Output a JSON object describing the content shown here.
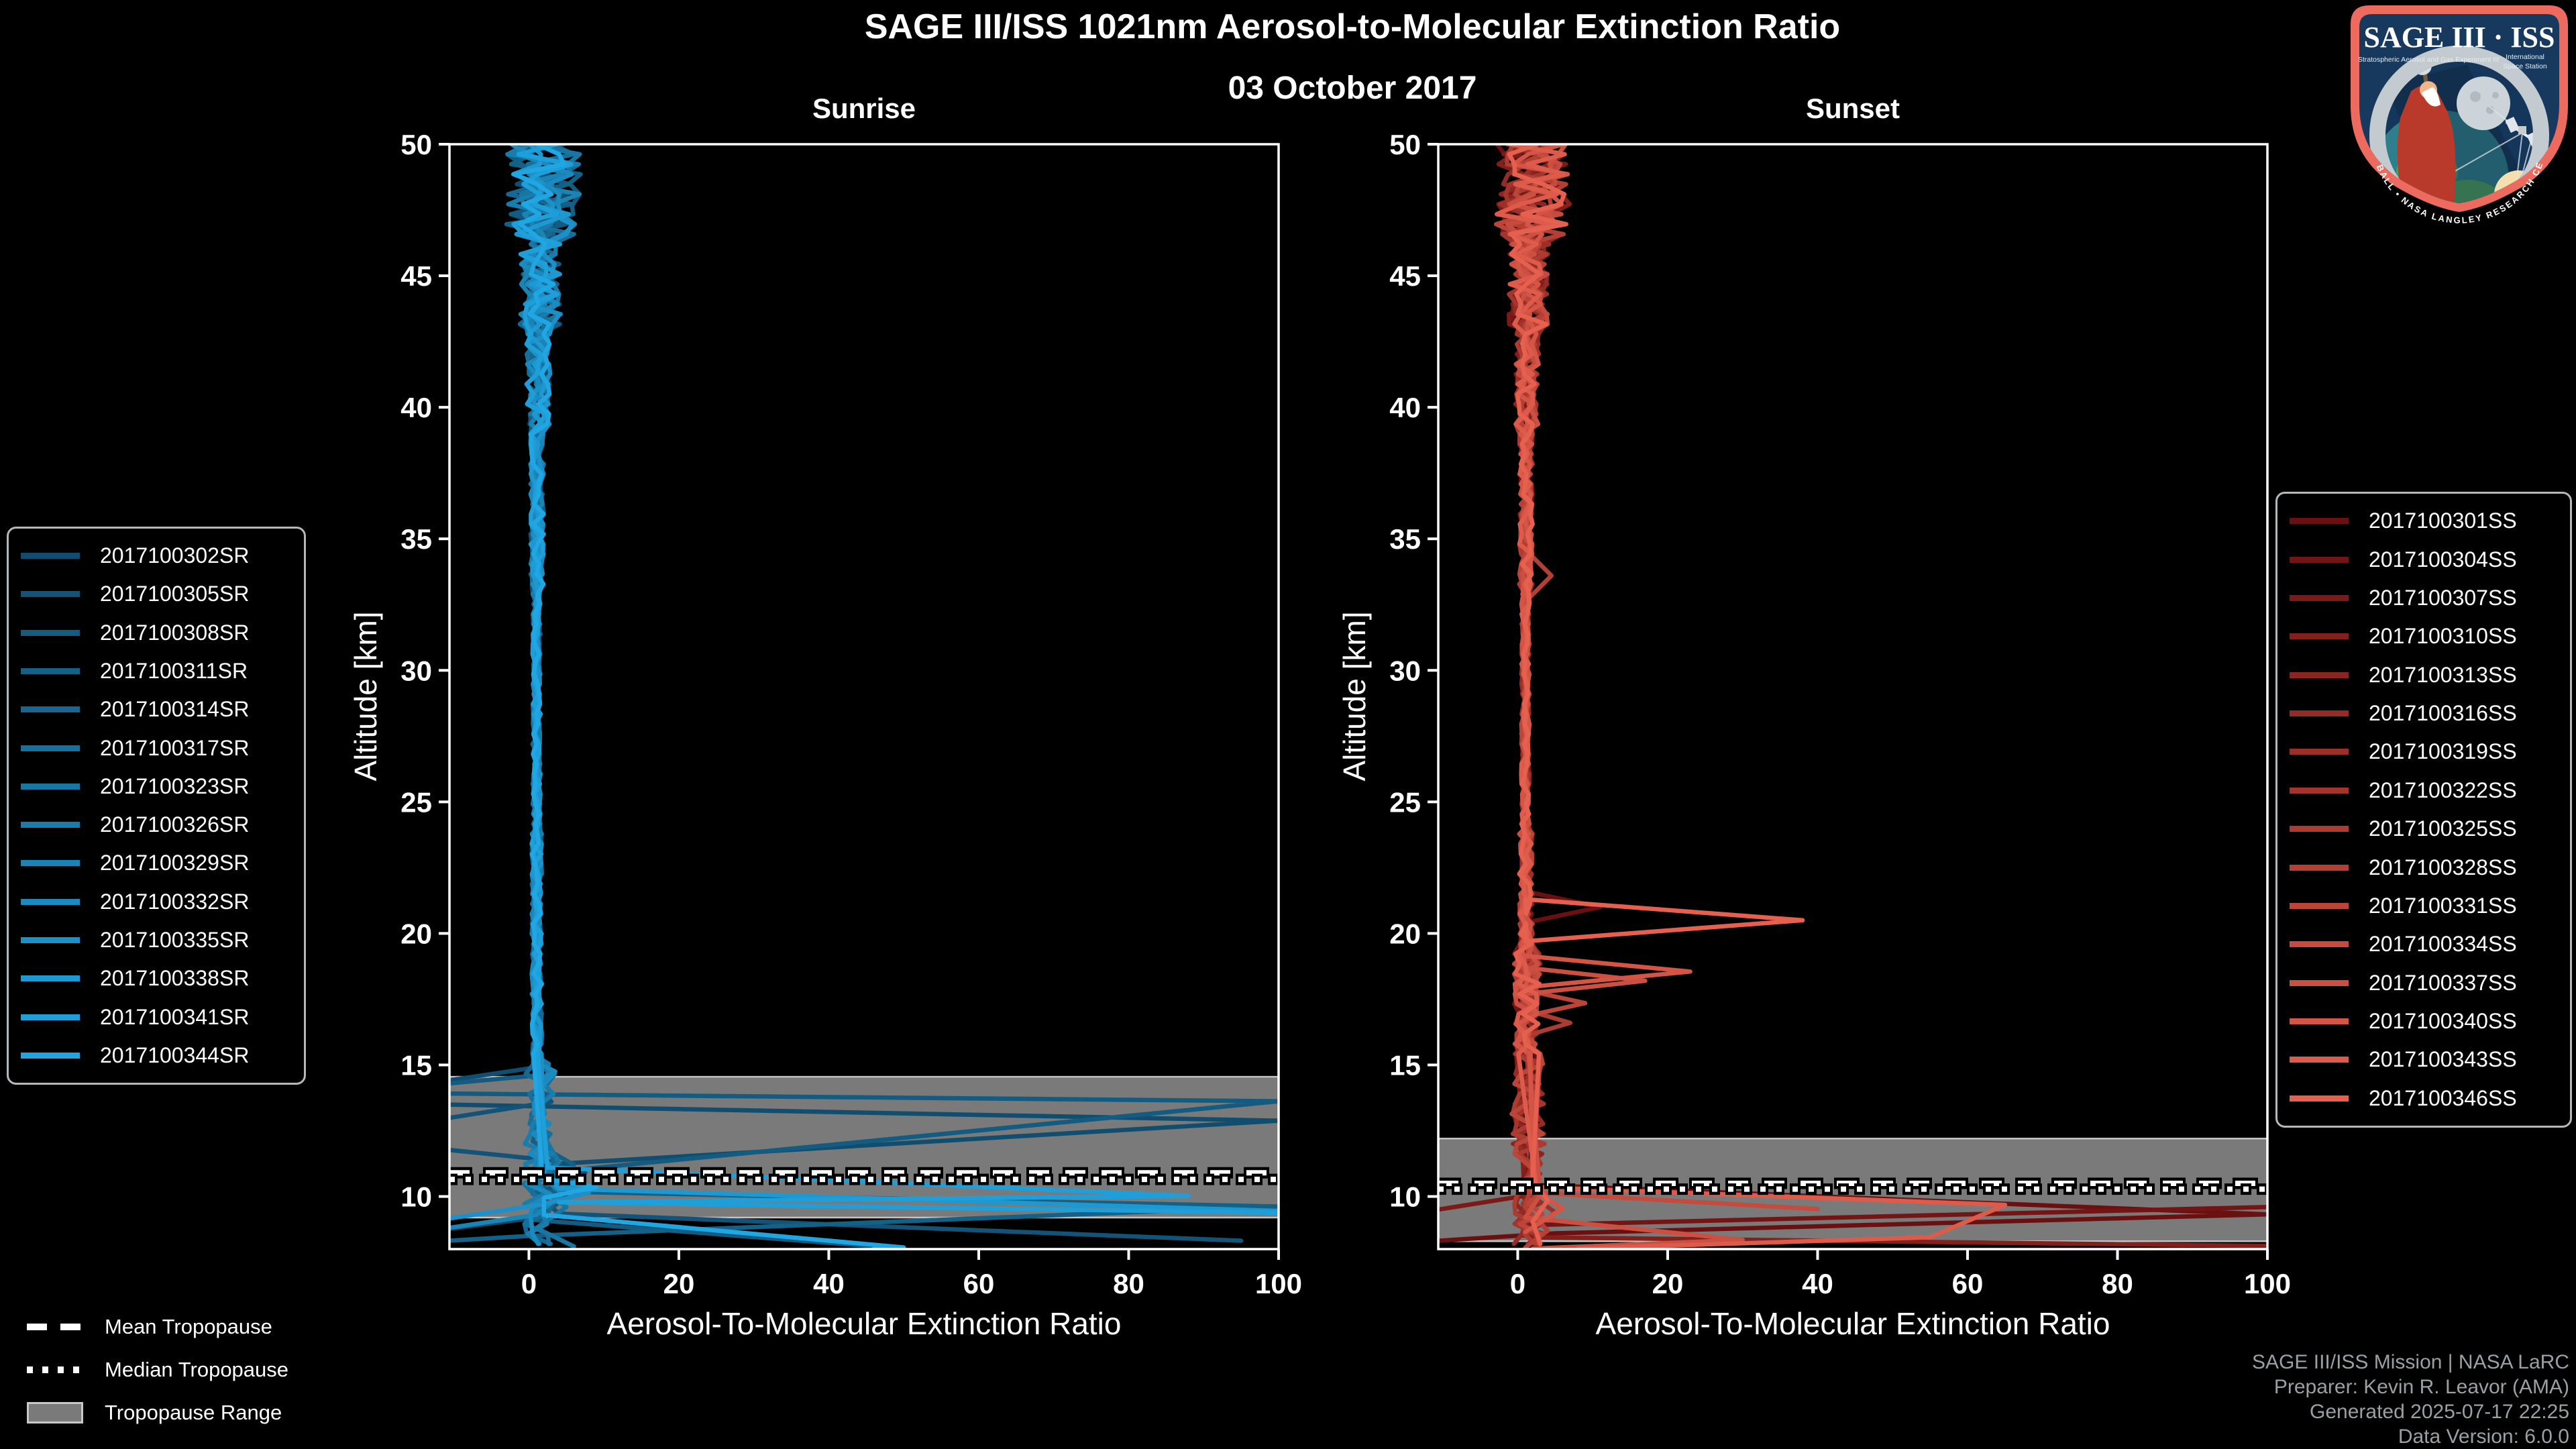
{
  "header": {
    "title": "SAGE III/ISS 1021nm Aerosol-to-Molecular Extinction Ratio",
    "date": "03 October 2017"
  },
  "logo": {
    "title": "SAGE III · ISS",
    "subtitle_left": "Stratospheric Aerosol and Gas Experiment III",
    "subtitle_right_1": "International",
    "subtitle_right_2": "Space Station",
    "ring_text": "BALL • NASA LANGLEY RESEARCH CENTER • TAS-I • ESA"
  },
  "tropopause_legend": {
    "mean": "Mean Tropopause",
    "median": "Median Tropopause",
    "range": "Tropopause Range"
  },
  "attribution": {
    "line1": "SAGE III/ISS Mission | NASA LaRC",
    "line2": "Preparer: Kevin R. Leavor (AMA)",
    "line3": "Generated 2025-07-17 22:25",
    "line4": "Data Version: 6.0.0"
  },
  "colors": {
    "background": "#000000",
    "axis": "#ffffff",
    "tick_label": "#ffffff",
    "tropopause_band": "#7a7a7a",
    "band_edge": "#c4c4c4",
    "tropopause_line": "#ffffff",
    "tropopause_casing": "#000000",
    "attribution": "#9aa0a3",
    "legend_border": "#b4b8bb",
    "logo_border": "#ed6a5e",
    "logo_field": "#16395d"
  },
  "chart_data": [
    {
      "type": "line",
      "panel": "sunrise",
      "title": "Sunrise",
      "xlabel": "Aerosol-To-Molecular Extinction Ratio",
      "ylabel": "Altitude [km]",
      "xlim": [
        -10.6,
        100
      ],
      "ylim": [
        8,
        50
      ],
      "xticks": [
        0,
        20,
        40,
        60,
        80,
        100
      ],
      "yticks": [
        10,
        15,
        20,
        25,
        30,
        35,
        40,
        45,
        50
      ],
      "grid": false,
      "legend_position": "left",
      "tropopause": {
        "mean_km": 10.9,
        "median_km": 10.65,
        "range_km": [
          9.2,
          14.55
        ]
      },
      "series": [
        {
          "name": "2017100302SR",
          "color": "#114D6E",
          "seed": 101,
          "features": [],
          "tail": [
            [
              0.8,
              14.9
            ],
            [
              -30,
              13.6
            ],
            [
              100,
              12.88
            ],
            [
              1.5,
              11.2
            ],
            [
              3,
              10.4
            ],
            [
              1,
              9.2
            ],
            [
              -30,
              8.05
            ]
          ]
        },
        {
          "name": "2017100305SR",
          "color": "#125377",
          "seed": 102,
          "features": [],
          "tail": [
            [
              1.2,
              14.2
            ],
            [
              3,
              13.6
            ],
            [
              -27,
              12.25
            ],
            [
              2,
              11.4
            ],
            [
              7.5,
              10.9
            ],
            [
              1,
              10.1
            ],
            [
              4,
              9.35
            ],
            [
              95,
              8.32
            ]
          ]
        },
        {
          "name": "2017100308SR",
          "color": "#135B80",
          "seed": 103,
          "features": [],
          "tail": [
            [
              1,
              14.6
            ],
            [
              -24,
              13.95
            ],
            [
              100,
              13.62
            ],
            [
              2,
              10.9
            ],
            [
              5,
              10.0
            ],
            [
              1,
              9.1
            ],
            [
              48,
              8.06
            ]
          ]
        },
        {
          "name": "2017100311SR",
          "color": "#146188",
          "seed": 104,
          "features": [],
          "tail": [
            [
              2,
              13.4
            ],
            [
              0.5,
              12.1
            ],
            [
              6,
              11.2
            ],
            [
              1,
              10.2
            ],
            [
              100,
              9.62
            ],
            [
              0,
              8.5
            ],
            [
              -28,
              8.02
            ]
          ]
        },
        {
          "name": "2017100314SR",
          "color": "#166892",
          "seed": 105,
          "features": [],
          "tail": null
        },
        {
          "name": "2017100317SR",
          "color": "#176F9B",
          "seed": 106,
          "features": [],
          "tail": null
        },
        {
          "name": "2017100323SR",
          "color": "#1876A3",
          "seed": 107,
          "features": [],
          "tail": [
            [
              1.4,
              12.6
            ],
            [
              4,
              11.3
            ],
            [
              0.8,
              10.5
            ],
            [
              5,
              9.6
            ],
            [
              1,
              8.8
            ],
            [
              6,
              8.1
            ]
          ]
        },
        {
          "name": "2017100326SR",
          "color": "#197DAC",
          "seed": 108,
          "features": [],
          "tail": null
        },
        {
          "name": "2017100329SR",
          "color": "#1A84B5",
          "seed": 109,
          "features": [],
          "tail": [
            [
              2,
              12.2
            ],
            [
              0.6,
              11.0
            ],
            [
              4.5,
              10.1
            ],
            [
              1,
              9.3
            ],
            [
              -25,
              8.2
            ]
          ]
        },
        {
          "name": "2017100332SR",
          "color": "#1B8ABE",
          "seed": 110,
          "features": [
            [
              14.75,
              3.5,
              0.35
            ]
          ],
          "tail": null
        },
        {
          "name": "2017100335SR",
          "color": "#1D91C7",
          "seed": 111,
          "features": [],
          "tail": [
            [
              2,
              11.6
            ],
            [
              1,
              10.8
            ],
            [
              8,
              10.15
            ],
            [
              2,
              9.7
            ],
            [
              -25,
              8.55
            ]
          ]
        },
        {
          "name": "2017100338SR",
          "color": "#1E98D0",
          "seed": 112,
          "features": [],
          "tail": [
            [
              1.5,
              11.0
            ],
            [
              4,
              10.3
            ],
            [
              100,
              9.45
            ]
          ]
        },
        {
          "name": "2017100341SR",
          "color": "#1F9FD9",
          "seed": 113,
          "features": [],
          "tail": [
            [
              2.5,
              11.1
            ],
            [
              88,
              10.02
            ],
            [
              4,
              9.78
            ],
            [
              100,
              9.38
            ]
          ]
        },
        {
          "name": "2017100344SR",
          "color": "#20A6E2",
          "seed": 114,
          "features": [],
          "tail": [
            [
              1.8,
              10.7
            ],
            [
              9,
              10.35
            ],
            [
              2,
              9.95
            ],
            [
              2,
              9.3
            ],
            [
              50,
              8.06
            ],
            [
              46,
              8.02
            ]
          ]
        }
      ]
    },
    {
      "type": "line",
      "panel": "sunset",
      "title": "Sunset",
      "xlabel": "Aerosol-To-Molecular Extinction Ratio",
      "ylabel": "Altitude [km]",
      "xlim": [
        -10.6,
        100
      ],
      "ylim": [
        8,
        50
      ],
      "xticks": [
        0,
        20,
        40,
        60,
        80,
        100
      ],
      "yticks": [
        10,
        15,
        20,
        25,
        30,
        35,
        40,
        45,
        50
      ],
      "grid": false,
      "legend_position": "right",
      "tropopause": {
        "mean_km": 10.5,
        "median_km": 10.28,
        "range_km": [
          8.3,
          12.2
        ]
      },
      "series": [
        {
          "name": "2017100301SS",
          "color": "#6B1010",
          "seed": 201,
          "features": [
            [
              21.0,
              11,
              0.6
            ]
          ],
          "tail": [
            [
              1.5,
              10.45
            ],
            [
              100,
              9.32
            ],
            [
              5,
              8.6
            ],
            [
              -28,
              8.0
            ]
          ]
        },
        {
          "name": "2017100304SS",
          "color": "#731514",
          "seed": 202,
          "features": [],
          "tail": [
            [
              1,
              9.75
            ],
            [
              0,
              8.9
            ],
            [
              100,
              9.6
            ]
          ]
        },
        {
          "name": "2017100307SS",
          "color": "#7B1B18",
          "seed": 203,
          "features": [],
          "tail": [
            [
              1.5,
              10.05
            ],
            [
              -25,
              8.85
            ]
          ]
        },
        {
          "name": "2017100310SS",
          "color": "#83201C",
          "seed": 204,
          "features": [],
          "tail": [
            [
              1,
              9.4
            ],
            [
              2,
              8.45
            ],
            [
              100,
              8.12
            ]
          ]
        },
        {
          "name": "2017100313SS",
          "color": "#8B2521",
          "seed": 205,
          "features": [],
          "tail": null
        },
        {
          "name": "2017100316SS",
          "color": "#942B25",
          "seed": 206,
          "features": [],
          "tail": null
        },
        {
          "name": "2017100319SS",
          "color": "#9C3029",
          "seed": 207,
          "features": [],
          "tail": [
            [
              2,
              11.2
            ],
            [
              0.5,
              10.3
            ],
            [
              5,
              9.4
            ],
            [
              1,
              8.5
            ]
          ]
        },
        {
          "name": "2017100322SS",
          "color": "#A4352D",
          "seed": 208,
          "features": [],
          "tail": null
        },
        {
          "name": "2017100325SS",
          "color": "#AC3B31",
          "seed": 209,
          "features": [
            [
              16.6,
              7,
              0.5
            ]
          ],
          "tail": null
        },
        {
          "name": "2017100328SS",
          "color": "#B44035",
          "seed": 210,
          "features": [
            [
              33.6,
              4.5,
              1.0
            ]
          ],
          "tail": [
            [
              2,
              10.6
            ],
            [
              1,
              9.6
            ],
            [
              4,
              8.7
            ],
            [
              1,
              8.05
            ]
          ]
        },
        {
          "name": "2017100331SS",
          "color": "#BC4539",
          "seed": 211,
          "features": [
            [
              17.35,
              9,
              0.5
            ]
          ],
          "tail": null
        },
        {
          "name": "2017100334SS",
          "color": "#C44B3D",
          "seed": 212,
          "features": [],
          "tail": [
            [
              2,
              10.15
            ],
            [
              40,
              9.52
            ]
          ]
        },
        {
          "name": "2017100337SS",
          "color": "#CC5042",
          "seed": 213,
          "features": [
            [
              18.2,
              17,
              0.5
            ]
          ],
          "tail": [
            [
              3,
              10.05
            ],
            [
              1,
              9.2
            ],
            [
              30,
              8.35
            ],
            [
              2,
              8.02
            ]
          ]
        },
        {
          "name": "2017100340SS",
          "color": "#D45546",
          "seed": 214,
          "features": [
            [
              18.55,
              23,
              0.6
            ]
          ],
          "tail": [
            [
              2,
              10.25
            ],
            [
              6,
              9.55
            ],
            [
              1,
              8.65
            ]
          ]
        },
        {
          "name": "2017100343SS",
          "color": "#DD5B4A",
          "seed": 215,
          "features": [],
          "tail": [
            [
              2.5,
              10.35
            ],
            [
              65,
              9.68
            ],
            [
              55,
              8.45
            ],
            [
              8,
              8.02
            ]
          ]
        },
        {
          "name": "2017100346SS",
          "color": "#E5604E",
          "seed": 216,
          "features": [
            [
              20.5,
              38,
              0.8
            ]
          ],
          "tail": [
            [
              2,
              10.65
            ],
            [
              4,
              9.85
            ],
            [
              2,
              9.05
            ],
            [
              3,
              8.2
            ]
          ]
        }
      ]
    }
  ]
}
